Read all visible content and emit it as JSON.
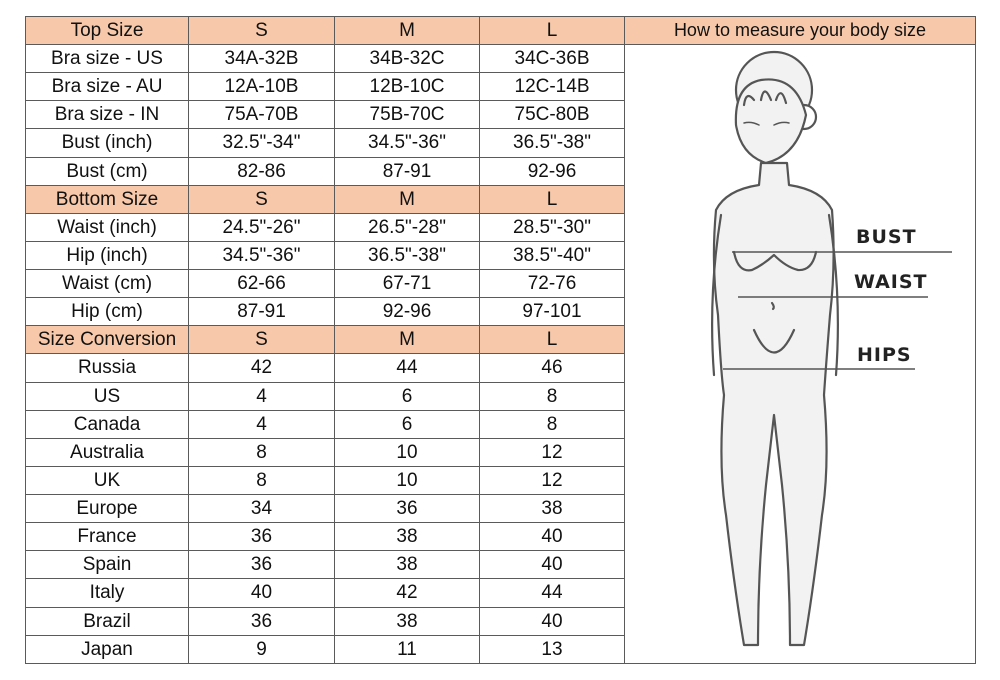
{
  "accent_color": "#f7c9aa",
  "panel": {
    "title": "How to measure your body size",
    "labels": {
      "bust": "BUST",
      "waist": "WAIST",
      "hips": "HIPS"
    }
  },
  "sections": [
    {
      "header": [
        "Top Size",
        "S",
        "M",
        "L"
      ],
      "rows": [
        [
          "Bra size - US",
          "34A-32B",
          "34B-32C",
          "34C-36B"
        ],
        [
          "Bra size - AU",
          "12A-10B",
          "12B-10C",
          "12C-14B"
        ],
        [
          "Bra size - IN",
          "75A-70B",
          "75B-70C",
          "75C-80B"
        ],
        [
          "Bust (inch)",
          "32.5\"-34\"",
          "34.5\"-36\"",
          "36.5\"-38\""
        ],
        [
          "Bust (cm)",
          "82-86",
          "87-91",
          "92-96"
        ]
      ]
    },
    {
      "header": [
        "Bottom Size",
        "S",
        "M",
        "L"
      ],
      "rows": [
        [
          "Waist (inch)",
          "24.5\"-26\"",
          "26.5\"-28\"",
          "28.5\"-30\""
        ],
        [
          "Hip (inch)",
          "34.5\"-36\"",
          "36.5\"-38\"",
          "38.5\"-40\""
        ],
        [
          "Waist (cm)",
          "62-66",
          "67-71",
          "72-76"
        ],
        [
          "Hip (cm)",
          "87-91",
          "92-96",
          "97-101"
        ]
      ]
    },
    {
      "header": [
        "Size Conversion",
        "S",
        "M",
        "L"
      ],
      "rows": [
        [
          "Russia",
          "42",
          "44",
          "46"
        ],
        [
          "US",
          "4",
          "6",
          "8"
        ],
        [
          "Canada",
          "4",
          "6",
          "8"
        ],
        [
          "Australia",
          "8",
          "10",
          "12"
        ],
        [
          "UK",
          "8",
          "10",
          "12"
        ],
        [
          "Europe",
          "34",
          "36",
          "38"
        ],
        [
          "France",
          "36",
          "38",
          "40"
        ],
        [
          "Spain",
          "36",
          "38",
          "40"
        ],
        [
          "Italy",
          "40",
          "42",
          "44"
        ],
        [
          "Brazil",
          "36",
          "38",
          "40"
        ],
        [
          "Japan",
          "9",
          "11",
          "13"
        ]
      ]
    }
  ]
}
